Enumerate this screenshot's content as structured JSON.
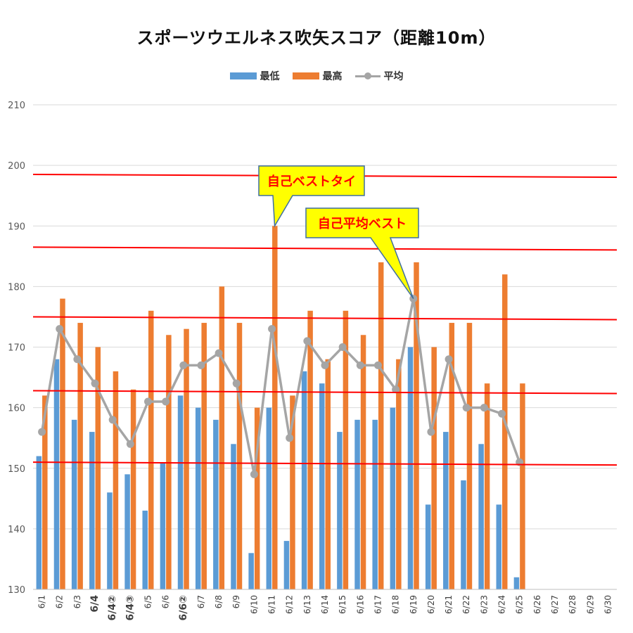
{
  "chart_data": {
    "type": "bar",
    "title": "スポーツウエルネス吹矢スコア（距離10m）",
    "categories": [
      "6/1",
      "6/2",
      "6/3",
      "6/4",
      "6/4②",
      "6/4③",
      "6/5",
      "6/6",
      "6/6②",
      "6/7",
      "6/8",
      "6/9",
      "6/10",
      "6/11",
      "6/12",
      "6/13",
      "6/14",
      "6/15",
      "6/16",
      "6/17",
      "6/18",
      "6/19",
      "6/20",
      "6/21",
      "6/22",
      "6/23",
      "6/24",
      "6/25",
      "6/26",
      "6/27",
      "6/28",
      "6/29",
      "6/30"
    ],
    "series": [
      {
        "name": "最低",
        "type": "bar",
        "color": "#5b9bd5",
        "values": [
          152,
          168,
          158,
          156,
          146,
          149,
          143,
          151,
          162,
          160,
          158,
          154,
          136,
          160,
          138,
          166,
          164,
          156,
          158,
          158,
          160,
          170,
          144,
          156,
          148,
          154,
          144,
          132,
          null,
          null,
          null,
          null,
          null
        ]
      },
      {
        "name": "最高",
        "type": "bar",
        "color": "#ed7d31",
        "values": [
          162,
          178,
          174,
          170,
          166,
          163,
          176,
          172,
          173,
          174,
          180,
          174,
          160,
          190,
          162,
          176,
          168,
          176,
          172,
          184,
          168,
          184,
          170,
          174,
          174,
          164,
          182,
          164,
          null,
          null,
          null,
          null,
          null
        ]
      },
      {
        "name": "平均",
        "type": "line",
        "color": "#a5a5a5",
        "values": [
          156,
          173,
          168,
          164,
          158,
          154,
          161,
          161,
          167,
          167,
          169,
          164,
          149,
          173,
          155,
          171,
          167,
          170,
          167,
          167,
          163,
          178,
          156,
          168,
          160,
          160,
          159,
          151,
          null,
          null,
          null,
          null,
          null
        ]
      }
    ],
    "ylim": [
      130,
      210
    ],
    "yticks": [
      130,
      140,
      150,
      160,
      170,
      180,
      190,
      200,
      210
    ],
    "bold_categories": [
      "6/4",
      "6/4②",
      "6/4③",
      "6/6②"
    ],
    "reference_lines": [
      198.5,
      186.5,
      175,
      162.8,
      151
    ],
    "reference_line_color": "#ff0000",
    "grid": true,
    "legend_position": "top",
    "annotations": [
      {
        "text": "自己ベストタイ",
        "target_category": "6/11",
        "target_value": 190
      },
      {
        "text": "自己平均ベスト",
        "target_category": "6/19",
        "target_value": 178
      }
    ],
    "annotation_fill": "#ffff00",
    "annotation_text_color": "#ff0000"
  }
}
